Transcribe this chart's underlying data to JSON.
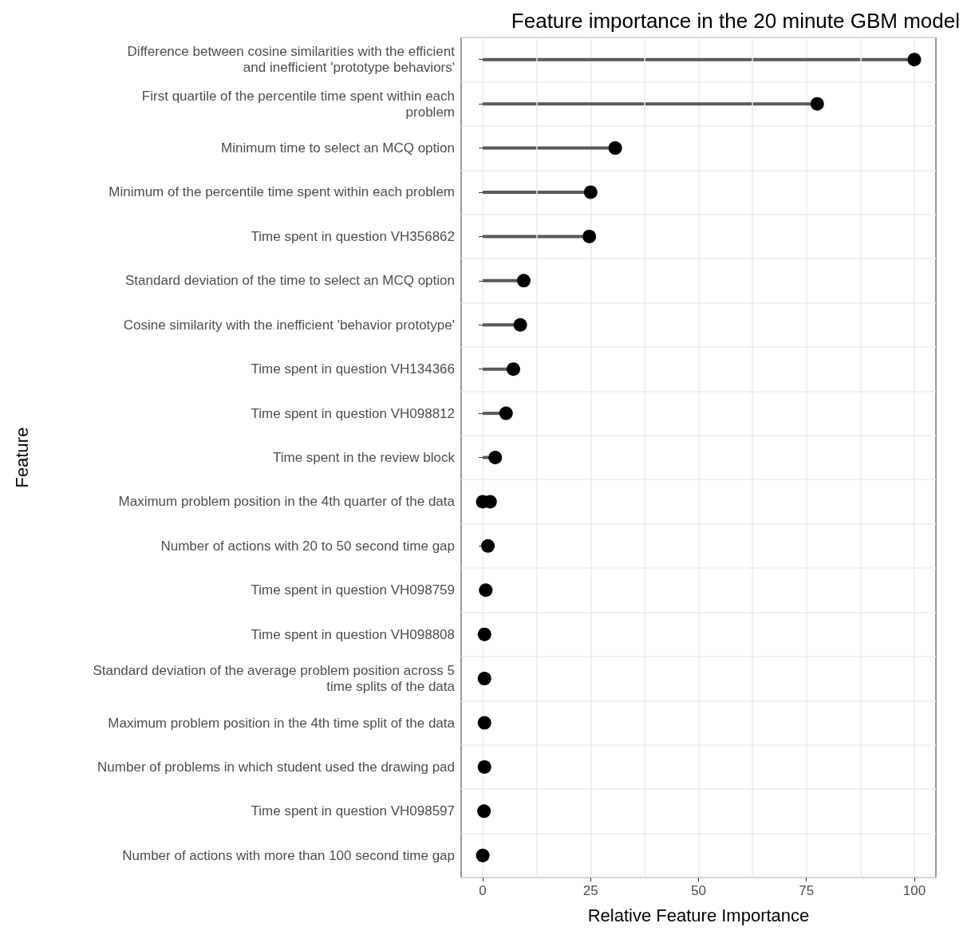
{
  "chart_data": {
    "type": "lollipop",
    "title": "Feature importance in the 20 minute GBM model",
    "xlabel": "Relative Feature Importance",
    "ylabel": "Feature",
    "orientation": "horizontal",
    "categories": [
      "Difference between cosine similarities with the efficient\nand inefficient 'prototype behaviors'",
      "First quartile of the percentile time spent within each\nproblem",
      "Minimum time to select an MCQ option",
      "Minimum of the percentile time spent within each problem",
      "Time spent in question VH356862",
      "Standard deviation of the time to select an MCQ option",
      "Cosine similarity with the inefficient 'behavior prototype'",
      "Time spent in question VH134366",
      "Time spent in question VH098812",
      "Time spent in the review block",
      "Maximum problem position in the 4th quarter of the data",
      "Number of actions with 20 to 50 second time gap",
      "Time spent in question VH098759",
      "Time spent in question VH098808",
      "Standard deviation of the average problem position across 5\ntime splits of the data",
      "Maximum problem position in the 4th time split of the data",
      "Number of problems in which student used the drawing pad",
      "Time spent in question VH098597",
      "Number of actions with more than 100 second time gap"
    ],
    "series": [
      {
        "color": "#000000",
        "values": [
          100,
          77.5,
          30.7,
          25.0,
          24.7,
          9.5,
          8.7,
          7.1,
          5.4,
          2.9,
          1.7,
          1.2,
          0.7,
          0.4,
          0.4,
          0.4,
          0.4,
          0.3,
          0
        ]
      },
      {
        "type": "scatter",
        "color": "#000000",
        "values": [
          null,
          null,
          null,
          null,
          null,
          null,
          null,
          null,
          null,
          null,
          0,
          null,
          null,
          null,
          null,
          null,
          null,
          null,
          null
        ]
      }
    ],
    "xlim": [
      -5,
      105
    ],
    "xticks": [
      0,
      {
        "value": 12.5,
        "label": null
      },
      25,
      {
        "value": 37.5,
        "label": null
      },
      50,
      {
        "value": 62.5,
        "label": null
      },
      75,
      {
        "value": 87.5,
        "label": null
      },
      100
    ],
    "grid": true,
    "marker": "circle"
  }
}
